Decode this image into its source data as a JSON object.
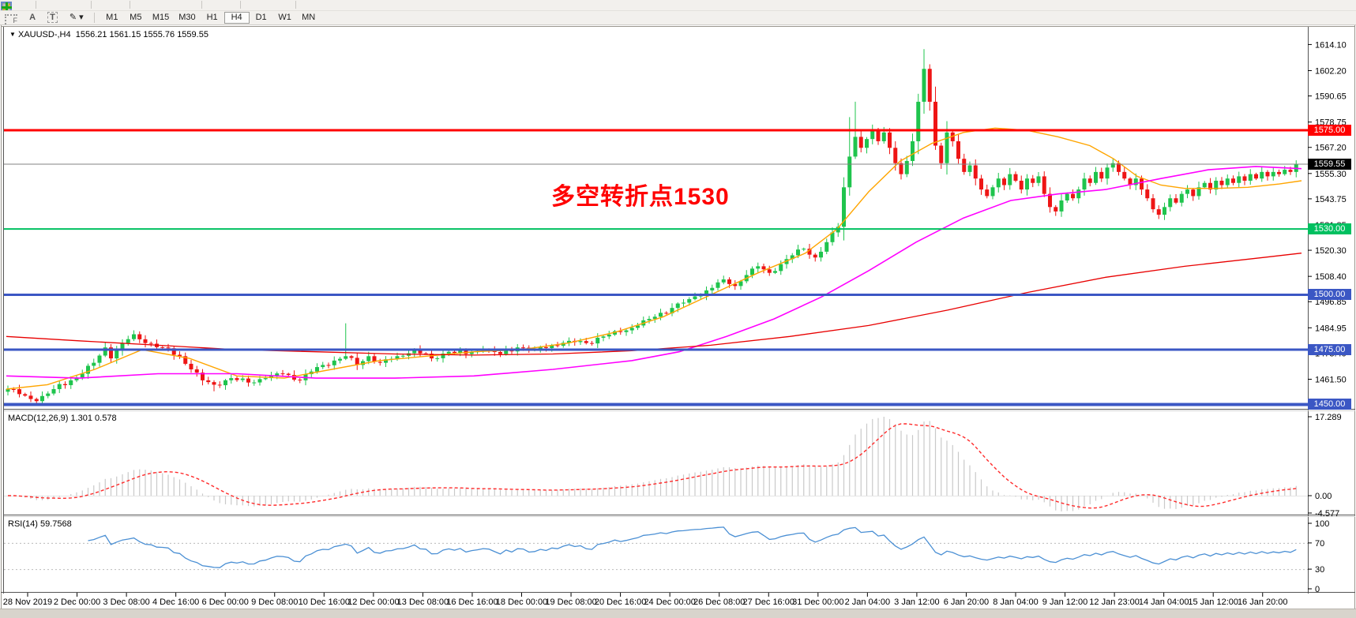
{
  "toolbar": {
    "row1_icons": [
      {
        "name": "new-order-icon",
        "shape": "square",
        "color": "#d9b84a"
      },
      {
        "name": "market-watch-icon",
        "shape": "magnifier",
        "color": "#e8c23a"
      },
      {
        "name": "bar-chart-icon",
        "shape": "vbars",
        "color": "#8a8a8a"
      },
      {
        "name": "candle-chart-icon",
        "shape": "vbars",
        "color": "#5a8a5a"
      },
      {
        "name": "line-chart-icon",
        "shape": "vbars",
        "color": "#7a7aa0"
      },
      {
        "name": "zoom-in-icon",
        "shape": "magnifier",
        "color": "#d8a020"
      },
      {
        "name": "zoom-out-icon",
        "shape": "magnifier",
        "color": "#d8a020"
      },
      {
        "name": "indicator-orange-icon",
        "shape": "circle",
        "color": "#e07818"
      },
      {
        "name": "indicator-blue-icon",
        "shape": "circle",
        "color": "#2858c8"
      },
      {
        "name": "indicator-green-icon",
        "shape": "circle",
        "color": "#2a9a3a"
      },
      {
        "name": "indicator-red-icon",
        "shape": "circle",
        "color": "#d82818"
      },
      {
        "name": "cursor-tool-icon",
        "shape": "square",
        "color": "#b8b8b8"
      },
      {
        "name": "crosshair-tool-icon",
        "shape": "plus",
        "color": "#888888"
      },
      {
        "name": "trendline-tool-icon",
        "shape": "slash",
        "color": "#c8a820"
      },
      {
        "name": "hline-tool-icon",
        "shape": "slash",
        "color": "#c8a820"
      },
      {
        "name": "fibonacci-tool-icon",
        "shape": "grid",
        "color": "#48a848"
      },
      {
        "name": "tile-windows-icon",
        "shape": "grid",
        "color": "#6888c8"
      },
      {
        "name": "add-indicator-icon",
        "shape": "plus",
        "color": "#18a818"
      }
    ],
    "row2": {
      "grid_label": "F",
      "text_a": "A",
      "text_t": "T",
      "caret": "▾",
      "shapes_glyph": "✎",
      "timeframes": [
        "M1",
        "M5",
        "M15",
        "M30",
        "H1",
        "H4",
        "D1",
        "W1",
        "MN"
      ],
      "active": "H4"
    }
  },
  "window": {
    "title_caret": "▼",
    "title_symbol": "XAUUSD-,H4",
    "title_ohlc": "1556.21 1561.15 1555.76 1559.55"
  },
  "annotation": {
    "text": "多空转折点1530",
    "color": "#ff0000"
  },
  "panels": {
    "macd": {
      "label": "MACD(12,26,9) 1.301 0.578",
      "axis_top": "17.289",
      "axis_zero": "0.00",
      "axis_bottom": "-4.577"
    },
    "rsi": {
      "label": "RSI(14) 59.7568",
      "axis_labels": [
        "100",
        "70",
        "30",
        "0"
      ]
    }
  },
  "price_axis": {
    "ticks": [
      1614.1,
      1602.2,
      1590.65,
      1578.75,
      1567.2,
      1555.3,
      1543.75,
      1531.85,
      1520.3,
      1508.4,
      1496.85,
      1484.95,
      1473.4,
      1461.5
    ],
    "badges": [
      {
        "text": "1575.00",
        "price": 1575.0,
        "bg": "#ff0000"
      },
      {
        "text": "1559.55",
        "price": 1559.55,
        "bg": "#000000"
      },
      {
        "text": "1530.00",
        "price": 1530.0,
        "bg": "#00c060"
      },
      {
        "text": "1500.00",
        "price": 1500.0,
        "bg": "#3b57c4"
      },
      {
        "text": "1475.00",
        "price": 1475.0,
        "bg": "#3b57c4"
      },
      {
        "text": "1450.00",
        "price": 1450.0,
        "bg": "#3b57c4"
      }
    ]
  },
  "time_axis": {
    "labels": [
      "28 Nov 2019",
      "2 Dec 00:00",
      "3 Dec 08:00",
      "4 Dec 16:00",
      "6 Dec 00:00",
      "9 Dec 08:00",
      "10 Dec 16:00",
      "12 Dec 00:00",
      "13 Dec 08:00",
      "16 Dec 16:00",
      "18 Dec 00:00",
      "19 Dec 08:00",
      "20 Dec 16:00",
      "24 Dec 00:00",
      "26 Dec 08:00",
      "27 Dec 16:00",
      "31 Dec 00:00",
      "2 Jan 04:00",
      "3 Jan 12:00",
      "6 Jan 20:00",
      "8 Jan 04:00",
      "9 Jan 12:00",
      "12 Jan 23:00",
      "14 Jan 04:00",
      "15 Jan 12:00",
      "16 Jan 20:00"
    ]
  },
  "chart_data": {
    "type": "candlestick",
    "symbol": "XAUUSD-",
    "timeframe": "H4",
    "ohlc_current": {
      "open": 1556.21,
      "high": 1561.15,
      "low": 1555.76,
      "close": 1559.55
    },
    "bars": 226,
    "price_range": [
      1448,
      1620
    ],
    "close_anchors": [
      [
        0,
        1457
      ],
      [
        3,
        1454
      ],
      [
        5,
        1451.5
      ],
      [
        8,
        1457
      ],
      [
        11,
        1461
      ],
      [
        13,
        1464
      ],
      [
        15,
        1469
      ],
      [
        17,
        1476
      ],
      [
        18,
        1471
      ],
      [
        20,
        1478
      ],
      [
        22,
        1482
      ],
      [
        24,
        1478
      ],
      [
        27,
        1476
      ],
      [
        30,
        1472
      ],
      [
        32,
        1466
      ],
      [
        34,
        1461
      ],
      [
        36,
        1459
      ],
      [
        39,
        1462
      ],
      [
        42,
        1460
      ],
      [
        45,
        1462
      ],
      [
        48,
        1464
      ],
      [
        51,
        1461
      ],
      [
        53,
        1465
      ],
      [
        55,
        1468
      ],
      [
        57,
        1470
      ],
      [
        59,
        1472
      ],
      [
        61,
        1468
      ],
      [
        63,
        1472
      ],
      [
        65,
        1469
      ],
      [
        68,
        1472
      ],
      [
        71,
        1475
      ],
      [
        74,
        1471
      ],
      [
        77,
        1474
      ],
      [
        80,
        1473
      ],
      [
        83,
        1475
      ],
      [
        86,
        1473
      ],
      [
        89,
        1476
      ],
      [
        92,
        1475
      ],
      [
        95,
        1477
      ],
      [
        98,
        1479
      ],
      [
        101,
        1478
      ],
      [
        104,
        1481
      ],
      [
        107,
        1483
      ],
      [
        110,
        1486
      ],
      [
        113,
        1490
      ],
      [
        116,
        1494
      ],
      [
        119,
        1498
      ],
      [
        122,
        1502
      ],
      [
        125,
        1507
      ],
      [
        127,
        1504
      ],
      [
        129,
        1509
      ],
      [
        131,
        1513
      ],
      [
        133,
        1510
      ],
      [
        135,
        1514
      ],
      [
        137,
        1518
      ],
      [
        139,
        1521
      ],
      [
        141,
        1517
      ],
      [
        143,
        1524
      ],
      [
        145,
        1531
      ],
      [
        146,
        1549
      ],
      [
        147,
        1563
      ],
      [
        148,
        1572
      ],
      [
        149,
        1567
      ],
      [
        150,
        1571
      ],
      [
        151,
        1575
      ],
      [
        152,
        1570
      ],
      [
        153,
        1574
      ],
      [
        154,
        1567
      ],
      [
        155,
        1560
      ],
      [
        156,
        1555
      ],
      [
        157,
        1561
      ],
      [
        158,
        1570
      ],
      [
        159,
        1588
      ],
      [
        160,
        1603
      ],
      [
        161,
        1588
      ],
      [
        162,
        1568
      ],
      [
        163,
        1560
      ],
      [
        164,
        1574
      ],
      [
        165,
        1570
      ],
      [
        166,
        1562
      ],
      [
        167,
        1556
      ],
      [
        168,
        1559
      ],
      [
        169,
        1553
      ],
      [
        170,
        1548
      ],
      [
        171,
        1545
      ],
      [
        172,
        1549
      ],
      [
        173,
        1553
      ],
      [
        174,
        1550
      ],
      [
        175,
        1555
      ],
      [
        176,
        1552
      ],
      [
        177,
        1548
      ],
      [
        178,
        1553
      ],
      [
        179,
        1551
      ],
      [
        180,
        1554
      ],
      [
        181,
        1546
      ],
      [
        182,
        1540
      ],
      [
        183,
        1538
      ],
      [
        184,
        1543
      ],
      [
        185,
        1546
      ],
      [
        186,
        1544
      ],
      [
        187,
        1548
      ],
      [
        188,
        1553
      ],
      [
        189,
        1551
      ],
      [
        190,
        1556
      ],
      [
        191,
        1553
      ],
      [
        192,
        1558
      ],
      [
        193,
        1560
      ],
      [
        194,
        1556
      ],
      [
        195,
        1553
      ],
      [
        196,
        1550
      ],
      [
        197,
        1553
      ],
      [
        198,
        1548
      ],
      [
        199,
        1544
      ],
      [
        200,
        1539
      ],
      [
        201,
        1536.5
      ],
      [
        202,
        1540
      ],
      [
        203,
        1544
      ],
      [
        204,
        1542
      ],
      [
        205,
        1546
      ],
      [
        206,
        1548
      ],
      [
        207,
        1545
      ],
      [
        208,
        1549
      ],
      [
        209,
        1551
      ],
      [
        210,
        1548
      ],
      [
        211,
        1552
      ],
      [
        212,
        1550
      ],
      [
        213,
        1553
      ],
      [
        214,
        1551
      ],
      [
        215,
        1554
      ],
      [
        216,
        1552
      ],
      [
        217,
        1555
      ],
      [
        218,
        1553
      ],
      [
        219,
        1556
      ],
      [
        220,
        1554
      ],
      [
        221,
        1556
      ],
      [
        222,
        1555
      ],
      [
        223,
        1557
      ],
      [
        224,
        1556
      ],
      [
        225,
        1559.55
      ]
    ],
    "special_highs": [
      [
        59,
        1487
      ],
      [
        147,
        1581
      ],
      [
        148,
        1588
      ],
      [
        160,
        1612
      ]
    ],
    "special_lows": [
      [
        5,
        1450
      ],
      [
        36,
        1456
      ],
      [
        201,
        1536
      ]
    ],
    "hlines": [
      {
        "price": 1575.0,
        "color": "#ff0000",
        "width": 3
      },
      {
        "price": 1530.0,
        "color": "#00c060",
        "width": 2
      },
      {
        "price": 1500.0,
        "color": "#3b57c4",
        "width": 3
      },
      {
        "price": 1475.0,
        "color": "#3b57c4",
        "width": 3
      },
      {
        "price": 1450.0,
        "color": "#3b57c4",
        "width": 4
      }
    ],
    "current_price_line": {
      "price": 1559.55,
      "color": "#808080",
      "width": 1
    },
    "moving_averages": {
      "fast_orange": [
        [
          8,
          1457
        ],
        [
          60,
          1459
        ],
        [
          120,
          1466
        ],
        [
          180,
          1475
        ],
        [
          240,
          1471
        ],
        [
          300,
          1463
        ],
        [
          360,
          1462
        ],
        [
          420,
          1466
        ],
        [
          480,
          1470
        ],
        [
          540,
          1472
        ],
        [
          600,
          1474
        ],
        [
          660,
          1475
        ],
        [
          720,
          1478
        ],
        [
          780,
          1483
        ],
        [
          840,
          1490
        ],
        [
          900,
          1500
        ],
        [
          960,
          1510
        ],
        [
          1020,
          1519
        ],
        [
          1060,
          1530
        ],
        [
          1100,
          1547
        ],
        [
          1140,
          1561
        ],
        [
          1180,
          1569
        ],
        [
          1220,
          1574
        ],
        [
          1260,
          1576
        ],
        [
          1300,
          1575
        ],
        [
          1340,
          1572
        ],
        [
          1380,
          1568
        ],
        [
          1410,
          1562
        ],
        [
          1440,
          1554
        ],
        [
          1470,
          1550
        ],
        [
          1500,
          1548.5
        ],
        [
          1540,
          1548.5
        ],
        [
          1580,
          1549
        ],
        [
          1620,
          1550.5
        ],
        [
          1648,
          1552
        ]
      ],
      "mid_magenta": [
        [
          8,
          1463
        ],
        [
          100,
          1462
        ],
        [
          200,
          1464
        ],
        [
          300,
          1464
        ],
        [
          400,
          1462
        ],
        [
          500,
          1462
        ],
        [
          600,
          1463
        ],
        [
          700,
          1466
        ],
        [
          800,
          1470
        ],
        [
          860,
          1474
        ],
        [
          920,
          1481
        ],
        [
          980,
          1489
        ],
        [
          1040,
          1499
        ],
        [
          1100,
          1511
        ],
        [
          1160,
          1524
        ],
        [
          1220,
          1535
        ],
        [
          1280,
          1543
        ],
        [
          1340,
          1546
        ],
        [
          1400,
          1548
        ],
        [
          1470,
          1553
        ],
        [
          1530,
          1557
        ],
        [
          1590,
          1558.5
        ],
        [
          1648,
          1557.5
        ]
      ],
      "slow_red": [
        [
          8,
          1481
        ],
        [
          100,
          1479
        ],
        [
          200,
          1477
        ],
        [
          300,
          1475
        ],
        [
          400,
          1474
        ],
        [
          500,
          1473
        ],
        [
          600,
          1472.5
        ],
        [
          700,
          1473
        ],
        [
          800,
          1474.5
        ],
        [
          900,
          1477
        ],
        [
          1000,
          1481
        ],
        [
          1100,
          1486
        ],
        [
          1200,
          1493
        ],
        [
          1300,
          1501
        ],
        [
          1400,
          1508
        ],
        [
          1500,
          1513
        ],
        [
          1600,
          1517
        ],
        [
          1648,
          1519
        ]
      ]
    },
    "macd": {
      "params": [
        12,
        26,
        9
      ],
      "last_main": 1.301,
      "last_signal": 0.578,
      "axis_max": 17.289,
      "axis_min": -4.577
    },
    "rsi": {
      "period": 14,
      "last_value": 59.7568,
      "levels": [
        70,
        30
      ],
      "range": [
        0,
        100
      ]
    },
    "colors": {
      "up": "#1fc44d",
      "down": "#ee1515",
      "ma_fast": "#ffa500",
      "ma_mid": "#ff00ff",
      "ma_slow": "#e80000",
      "macd_hist": "#c9c9c9",
      "macd_signal": "#ff2a2a",
      "rsi_line": "#4a8fd4",
      "level_grid": "#bbbbbb",
      "frame": "#555555",
      "axis_text": "#000000"
    }
  }
}
